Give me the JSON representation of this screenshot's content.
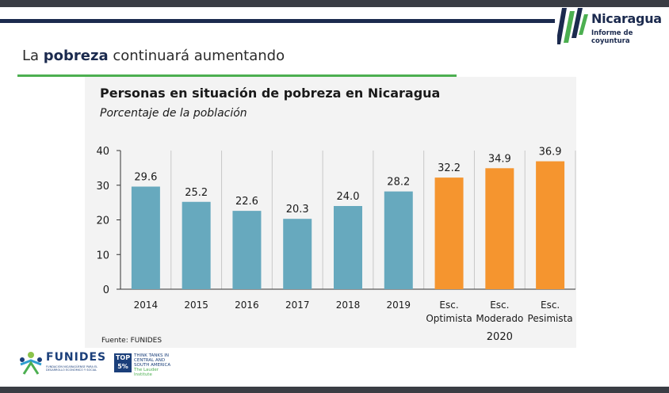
{
  "header": {
    "logo_title": "Nicaragua",
    "logo_subtitle": "Informe de coyuntura"
  },
  "slide": {
    "headline_pre": "La ",
    "headline_bold": "pobreza",
    "headline_post": " continuará aumentando"
  },
  "chart_data": {
    "type": "bar",
    "title": "Personas en situación de pobreza en Nicaragua",
    "subtitle": "Porcentaje de la población",
    "categories": [
      "2014",
      "2015",
      "2016",
      "2017",
      "2018",
      "2019",
      "Esc. Optimista",
      "Esc. Moderado",
      "Esc. Pesimista"
    ],
    "category_lines": [
      [
        "2014"
      ],
      [
        "2015"
      ],
      [
        "2016"
      ],
      [
        "2017"
      ],
      [
        "2018"
      ],
      [
        "2019"
      ],
      [
        "Esc.",
        "Optimista"
      ],
      [
        "Esc.",
        "Moderado"
      ],
      [
        "Esc.",
        "Pesimista"
      ]
    ],
    "values": [
      29.6,
      25.2,
      22.6,
      20.3,
      24.0,
      28.2,
      32.2,
      34.9,
      36.9
    ],
    "value_labels": [
      "29.6",
      "25.2",
      "22.6",
      "20.3",
      "24.0",
      "28.2",
      "32.2",
      "34.9",
      "36.9"
    ],
    "group_label": "2020",
    "yticks": [
      0,
      10,
      20,
      30,
      40
    ],
    "ylim": [
      0,
      40
    ],
    "grid": "vertical",
    "colors": {
      "historical": "#67a9be",
      "scenario": "#f5952f"
    },
    "source": "Fuente: FUNIDES"
  },
  "footer": {
    "funides_name": "FUNIDES",
    "funides_sub": "FUNDACIÓN NICARAGÜENSE PARA EL DESARROLLO ECONÓMICO Y SOCIAL",
    "top_badge": "TOP 5%",
    "top_text": "THINK TANKS IN CENTRAL AND SOUTH AMERICA",
    "top_note": "The Lauder Institute"
  }
}
